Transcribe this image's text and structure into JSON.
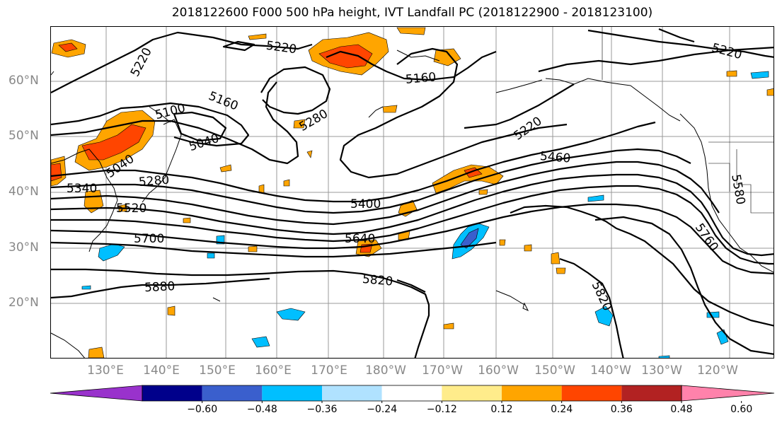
{
  "title": "2018122600 F000 500 hPa height, IVT Landfall PC (2018122900 - 2018123100)",
  "lat_labels": [
    "60°N",
    "50°N",
    "40°N",
    "30°N",
    "20°N"
  ],
  "lon_labels": [
    "130°E",
    "140°E",
    "150°E",
    "160°E",
    "170°E",
    "180°W",
    "170°W",
    "160°W",
    "150°W",
    "140°W",
    "130°W",
    "120°W"
  ],
  "contour_labels": [
    "5220",
    "5220",
    "5220",
    "5160",
    "5160",
    "5100",
    "5280",
    "5220",
    "5040",
    "5040",
    "5460",
    "5340",
    "5280",
    "5400",
    "5520",
    "5580",
    "5640",
    "5700",
    "5760",
    "5820",
    "5880",
    "5820"
  ],
  "colorbar": {
    "ticks": [
      "−0.60",
      "−0.48",
      "−0.36",
      "−0.24",
      "−0.12",
      "0.12",
      "0.24",
      "0.36",
      "0.48",
      "0.60"
    ],
    "colors": [
      "#9932cc",
      "#00008b",
      "#3a5fcd",
      "#00bfff",
      "#b0e2ff",
      "#ffffff",
      "#ffec8b",
      "#ffa500",
      "#ff4500",
      "#b22222",
      "#ff82ab"
    ]
  }
}
